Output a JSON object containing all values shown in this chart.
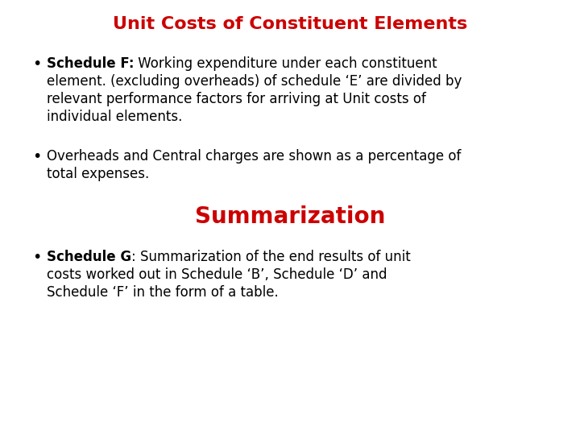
{
  "title": "Unit Costs of Constituent Elements",
  "title_color": "#CC0000",
  "title_fontsize": 16,
  "bg_color": "#FFFFFF",
  "bullet1_bold": "Schedule F:",
  "bullet1_rest_line1": " Working expenditure under each constituent",
  "bullet1_line2": "element. (excluding overheads) of schedule ‘E’ are divided by",
  "bullet1_line3": "relevant performance factors for arriving at Unit costs of",
  "bullet1_line4": "individual elements.",
  "bullet2_line1": "Overheads and Central charges are shown as a percentage of",
  "bullet2_line2": "total expenses.",
  "section2_title": "Summarization",
  "section2_color": "#CC0000",
  "section2_fontsize": 20,
  "bullet3_bold": "Schedule G",
  "bullet3_rest_line1": ": Summarization of the end results of unit",
  "bullet3_line2": "costs worked out in Schedule ‘B’, Schedule ‘D’ and",
  "bullet3_line3": "Schedule ‘F’ in the form of a table.",
  "text_color": "#000000",
  "body_fontsize": 12,
  "bullet_symbol": "•",
  "font_family": "DejaVu Sans"
}
